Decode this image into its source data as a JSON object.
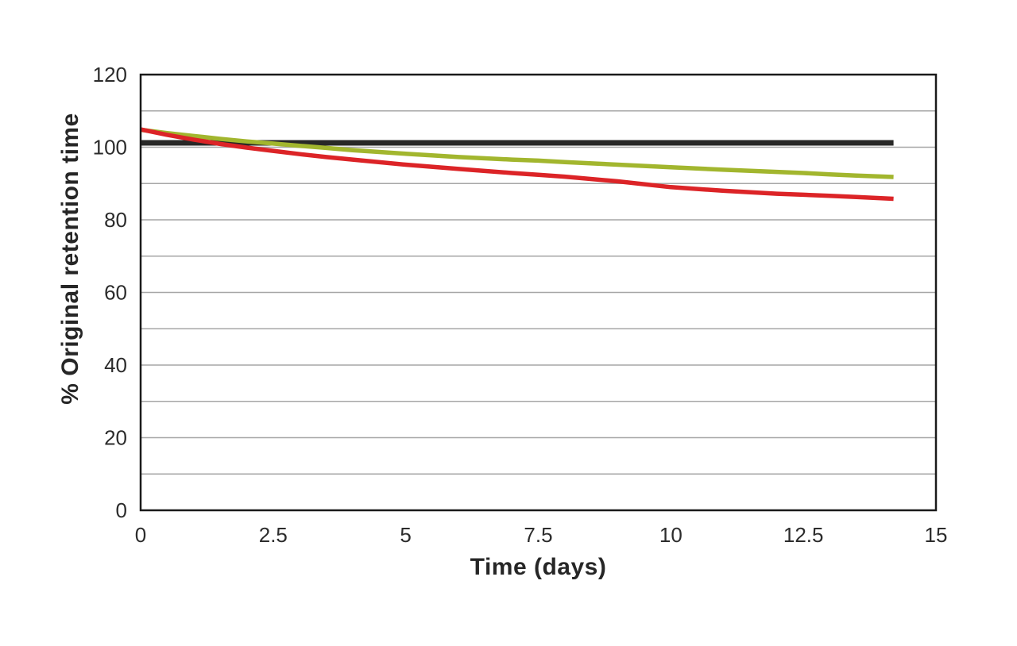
{
  "chart_data": {
    "type": "line",
    "title": "",
    "xlabel": "Time (days)",
    "ylabel": "% Original retention time",
    "xlim": [
      0,
      15
    ],
    "ylim": [
      0,
      120
    ],
    "grid": "horizontal, every 10 units, light gray",
    "legend": "none",
    "x_ticks": {
      "values": [
        0,
        2.5,
        5,
        7.5,
        10,
        12.5,
        15
      ],
      "labels": [
        "0",
        "2.5",
        "5",
        "7.5",
        "10",
        "12.5",
        "15"
      ]
    },
    "y_ticks": {
      "values": [
        0,
        20,
        40,
        60,
        80,
        100,
        120
      ],
      "labels": [
        "0",
        "20",
        "40",
        "60",
        "80",
        "100",
        "120"
      ]
    },
    "gridline_values": [
      10,
      20,
      30,
      40,
      50,
      60,
      70,
      80,
      90,
      100,
      110
    ],
    "series": [
      {
        "name": "reference-line-black",
        "color": "#282827",
        "stroke_width": 7,
        "x": [
          0,
          14.2
        ],
        "y": [
          101.2,
          101.2
        ]
      },
      {
        "name": "green-line",
        "color": "#a2b62e",
        "stroke_width": 5.5,
        "x": [
          0,
          0.5,
          1,
          1.5,
          2,
          2.5,
          3,
          3.5,
          4,
          5,
          6,
          7,
          7.5,
          8,
          9,
          10,
          11,
          12,
          12.5,
          13,
          13.5,
          14.2
        ],
        "y": [
          104.8,
          103.9,
          103.1,
          102.3,
          101.6,
          101.0,
          100.4,
          99.8,
          99.2,
          98.2,
          97.3,
          96.6,
          96.3,
          95.9,
          95.2,
          94.5,
          93.8,
          93.2,
          92.9,
          92.5,
          92.2,
          91.8
        ]
      },
      {
        "name": "red-line",
        "color": "#dc2427",
        "stroke_width": 5.5,
        "x": [
          0,
          0.5,
          1,
          1.5,
          2,
          2.5,
          3,
          3.5,
          4,
          5,
          6,
          7,
          7.5,
          8,
          9,
          10,
          11,
          12,
          12.5,
          13,
          13.5,
          14.2
        ],
        "y": [
          104.9,
          103.4,
          102.1,
          100.9,
          99.9,
          99.0,
          98.1,
          97.3,
          96.6,
          95.2,
          94.0,
          92.9,
          92.4,
          91.9,
          90.6,
          89.0,
          88.0,
          87.2,
          86.9,
          86.6,
          86.3,
          85.8
        ]
      }
    ],
    "colors": {
      "frame": "#1a1a1a",
      "gridline": "#a6a6a6",
      "tick_text": "#2c2c2c",
      "background": "#ffffff"
    }
  }
}
